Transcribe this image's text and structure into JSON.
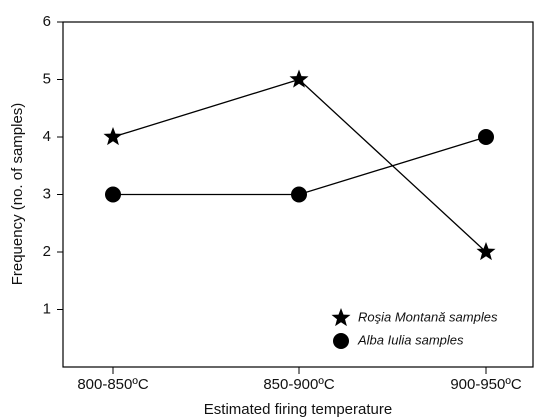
{
  "chart_data": {
    "type": "line",
    "xlabel": "Estimated firing temperature",
    "ylabel": "Frequency (no. of samples)",
    "categories": [
      "800-850ºC",
      "850-900ºC",
      "900-950ºC"
    ],
    "series": [
      {
        "name": "Roşia Montană samples",
        "color": "#000000",
        "marker": "star",
        "values": [
          4,
          5,
          2
        ]
      },
      {
        "name": "Alba Iulia samples",
        "color": "#000000",
        "marker": "circle",
        "values": [
          3,
          3,
          4
        ]
      }
    ],
    "ylim": [
      0,
      6
    ],
    "yticks": [
      1,
      2,
      3,
      4,
      5,
      6
    ],
    "legend": "lower right",
    "grid": false
  }
}
